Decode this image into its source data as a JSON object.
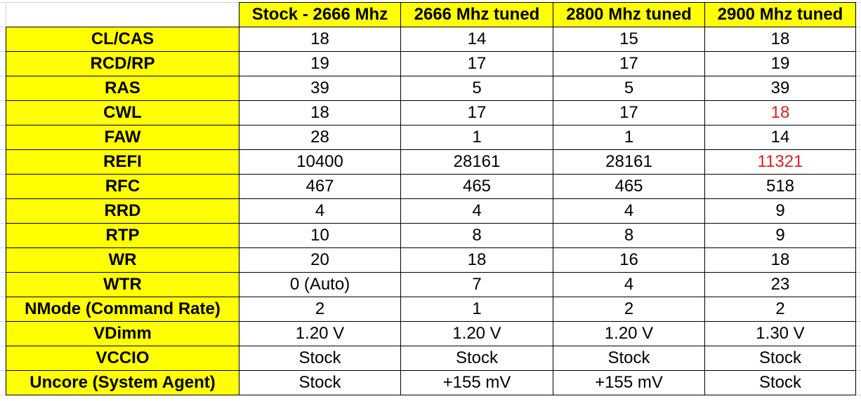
{
  "table": {
    "columns": [
      "Stock - 2666 Mhz",
      "2666 Mhz tuned",
      "2800 Mhz tuned",
      "2900 Mhz tuned"
    ],
    "rows": [
      {
        "label": "CL/CAS",
        "cells": [
          {
            "text": "18"
          },
          {
            "text": "14"
          },
          {
            "text": "15"
          },
          {
            "text": "18"
          }
        ]
      },
      {
        "label": "RCD/RP",
        "cells": [
          {
            "text": "19"
          },
          {
            "text": "17"
          },
          {
            "text": "17"
          },
          {
            "text": "19"
          }
        ]
      },
      {
        "label": "RAS",
        "cells": [
          {
            "text": "39"
          },
          {
            "text": "5"
          },
          {
            "text": "5"
          },
          {
            "text": "39"
          }
        ]
      },
      {
        "label": "CWL",
        "cells": [
          {
            "text": "18"
          },
          {
            "text": "17"
          },
          {
            "text": "17"
          },
          {
            "text": "18",
            "color": "#e02020"
          }
        ]
      },
      {
        "label": "FAW",
        "cells": [
          {
            "text": "28"
          },
          {
            "text": "1"
          },
          {
            "text": "1"
          },
          {
            "text": "14"
          }
        ]
      },
      {
        "label": "REFI",
        "cells": [
          {
            "text": "10400"
          },
          {
            "text": "28161"
          },
          {
            "text": "28161"
          },
          {
            "text": "11321",
            "color": "#e02020"
          }
        ]
      },
      {
        "label": "RFC",
        "cells": [
          {
            "text": "467"
          },
          {
            "text": "465"
          },
          {
            "text": "465"
          },
          {
            "text": "518"
          }
        ]
      },
      {
        "label": "RRD",
        "cells": [
          {
            "text": "4"
          },
          {
            "text": "4"
          },
          {
            "text": "4"
          },
          {
            "text": "9"
          }
        ]
      },
      {
        "label": "RTP",
        "cells": [
          {
            "text": "10"
          },
          {
            "text": "8"
          },
          {
            "text": "8"
          },
          {
            "text": "9"
          }
        ]
      },
      {
        "label": "WR",
        "cells": [
          {
            "text": "20"
          },
          {
            "text": "18"
          },
          {
            "text": "16"
          },
          {
            "text": "18"
          }
        ]
      },
      {
        "label": "WTR",
        "cells": [
          {
            "text": "0 (Auto)"
          },
          {
            "text": "7"
          },
          {
            "text": "4"
          },
          {
            "text": "23"
          }
        ]
      },
      {
        "label": "NMode (Command Rate)",
        "cells": [
          {
            "text": "2"
          },
          {
            "text": "1"
          },
          {
            "text": "2"
          },
          {
            "text": "2"
          }
        ]
      },
      {
        "label": "VDimm",
        "cells": [
          {
            "text": "1.20 V"
          },
          {
            "text": "1.20 V"
          },
          {
            "text": "1.20 V"
          },
          {
            "text": "1.30 V"
          }
        ]
      },
      {
        "label": "VCCIO",
        "cells": [
          {
            "text": "Stock"
          },
          {
            "text": "Stock"
          },
          {
            "text": "Stock"
          },
          {
            "text": "Stock"
          }
        ]
      },
      {
        "label": "Uncore (System Agent)",
        "cells": [
          {
            "text": "Stock"
          },
          {
            "text": "+155 mV"
          },
          {
            "text": "+155 mV"
          },
          {
            "text": "Stock"
          }
        ]
      }
    ]
  }
}
